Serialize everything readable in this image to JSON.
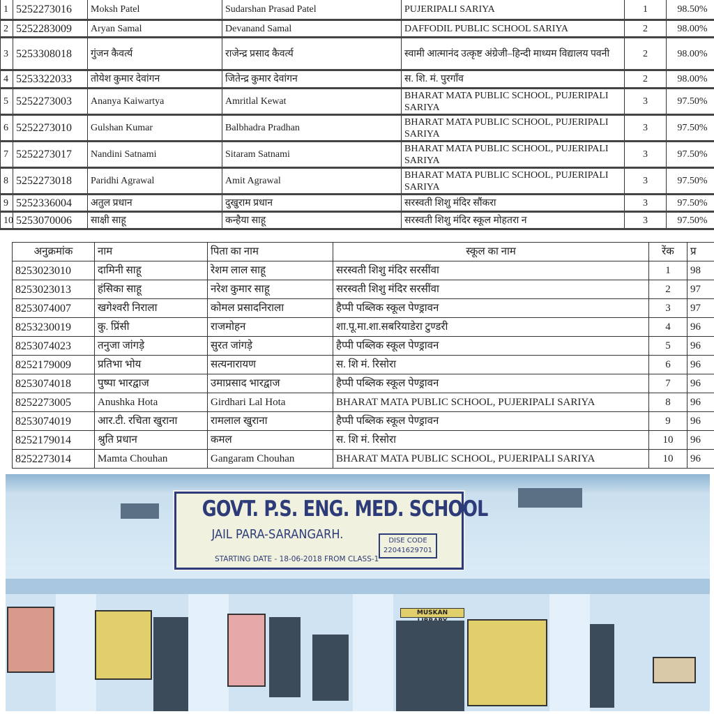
{
  "table_top": {
    "rows": [
      {
        "sn": "1",
        "roll": "5252273016",
        "name": "Moksh Patel",
        "father": "Sudarshan Prasad Patel",
        "school": "PUJERIPALI SARIYA",
        "rank": "1",
        "percent": "98.50%"
      },
      {
        "sn": "2",
        "roll": "5252283009",
        "name": "Aryan Samal",
        "father": "Devanand Samal",
        "school": "DAFFODIL PUBLIC SCHOOL SARIYA",
        "rank": "2",
        "percent": "98.00%"
      },
      {
        "sn": "3",
        "roll": "5253308018",
        "name": "गुंजन कैवर्त्य",
        "father": "राजेन्द्र प्रसाद कैवर्त्य",
        "school": "स्वामी आत्मानंद उत्कृष्ट अंग्रेजी–हिन्दी माध्यम विद्यालय पवनी",
        "rank": "2",
        "percent": "98.00%"
      },
      {
        "sn": "4",
        "roll": "5253322033",
        "name": "तोयेश कुमार देवांगन",
        "father": "जितेन्द्र कुमार देवांगन",
        "school": "स. शि. मं. पुरगाँव",
        "rank": "2",
        "percent": "98.00%"
      },
      {
        "sn": "5",
        "roll": "5252273003",
        "name": "Ananya Kaiwartya",
        "father": "Amritlal Kewat",
        "school": "BHARAT MATA PUBLIC SCHOOL, PUJERIPALI SARIYA",
        "rank": "3",
        "percent": "97.50%"
      },
      {
        "sn": "6",
        "roll": "5252273010",
        "name": "Gulshan Kumar",
        "father": "Balbhadra Pradhan",
        "school": "BHARAT MATA PUBLIC SCHOOL, PUJERIPALI SARIYA",
        "rank": "3",
        "percent": "97.50%"
      },
      {
        "sn": "7",
        "roll": "5252273017",
        "name": "Nandini Satnami",
        "father": "Sitaram Satnami",
        "school": "BHARAT MATA PUBLIC SCHOOL, PUJERIPALI SARIYA",
        "rank": "3",
        "percent": "97.50%"
      },
      {
        "sn": "8",
        "roll": "5252273018",
        "name": "Paridhi Agrawal",
        "father": "Amit Agrawal",
        "school": "BHARAT MATA PUBLIC SCHOOL, PUJERIPALI SARIYA",
        "rank": "3",
        "percent": "97.50%"
      },
      {
        "sn": "9",
        "roll": "5252336004",
        "name": "अतुल प्रधान",
        "father": "दुखुराम प्रधान",
        "school": "सरस्वती शिशु मंदिर सौंकरा",
        "rank": "3",
        "percent": "97.50%"
      },
      {
        "sn": "10",
        "roll": "5253070006",
        "name": "साक्षी साहू",
        "father": "कन्हैया साहू",
        "school": "सरस्वती शिशु मंदिर स्कूल मोहतरा न",
        "rank": "3",
        "percent": "97.50%"
      }
    ]
  },
  "table_bottom": {
    "headers": {
      "roll": "अनुक्रमांक",
      "name": "नाम",
      "father": "पिता का नाम",
      "school": "स्कूल का नाम",
      "rank": "रेंक",
      "percent": "प्र"
    },
    "rows": [
      {
        "roll": "8253023010",
        "name": "दामिनी साहू",
        "father": "रेशम लाल साहू",
        "school": "सरस्वती शिशु मंदिर सरसींवा",
        "rank": "1",
        "percent": "98"
      },
      {
        "roll": "8253023013",
        "name": "हंसिका साहू",
        "father": "नरेश कुमार साहू",
        "school": "सरस्वती शिशु मंदिर सरसींवा",
        "rank": "2",
        "percent": "97"
      },
      {
        "roll": "8253074007",
        "name": "खगेश्वरी निराला",
        "father": "कोमल प्रसादनिराला",
        "school": "हैप्पी पब्लिक स्कूल पेण्ड्रावन",
        "rank": "3",
        "percent": "97"
      },
      {
        "roll": "8253230019",
        "name": "कु. प्रिंसी",
        "father": "राजमोहन",
        "school": "शा.पू.मा.शा.सबरियाडेरा टुण्डरी",
        "rank": "4",
        "percent": "96"
      },
      {
        "roll": "8253074023",
        "name": "तनुजा जांगड़े",
        "father": "सुरत जांगड़े",
        "school": "हैप्पी पब्लिक स्कूल पेण्ड्रावन",
        "rank": "5",
        "percent": "96"
      },
      {
        "roll": "8252179009",
        "name": "प्रतिभा भोय",
        "father": "सत्यनारायण",
        "school": "स. शि मं. रिसोरा",
        "rank": "6",
        "percent": "96"
      },
      {
        "roll": "8253074018",
        "name": "पुष्पा भारद्वाज",
        "father": "उमाप्रसाद भारद्वाज",
        "school": "हैप्पी पब्लिक स्कूल पेण्ड्रावन",
        "rank": "7",
        "percent": "96"
      },
      {
        "roll": "8252273005",
        "name": "Anushka Hota",
        "father": "Girdhari Lal Hota",
        "school": "BHARAT MATA PUBLIC SCHOOL, PUJERIPALI SARIYA",
        "rank": "8",
        "percent": "96"
      },
      {
        "roll": "8253074019",
        "name": "आर.टी. रचिता खुराना",
        "father": "रामलाल खुराना",
        "school": "हैप्पी पब्लिक स्कूल पेण्ड्रावन",
        "rank": "9",
        "percent": "96"
      },
      {
        "roll": "8252179014",
        "name": "श्रुति प्रधान",
        "father": "कमल",
        "school": "स. शि मं. रिसोरा",
        "rank": "10",
        "percent": "96"
      },
      {
        "roll": "8252273014",
        "name": "Mamta Chouhan",
        "father": "Gangaram Chouhan",
        "school": "BHARAT MATA PUBLIC SCHOOL, PUJERIPALI SARIYA",
        "rank": "10",
        "percent": "96"
      }
    ]
  },
  "photo": {
    "sign_title": "GOVT. P.S. ENG. MED. SCHOOL",
    "sign_place": "JAIL PARA-SARANGARH.",
    "sign_date": "STARTING DATE - 18-06-2018 FROM CLASS-1",
    "dise_label": "DISE CODE",
    "dise_code": "22041629701",
    "library_label": "MUSKAN LIBRARY"
  }
}
